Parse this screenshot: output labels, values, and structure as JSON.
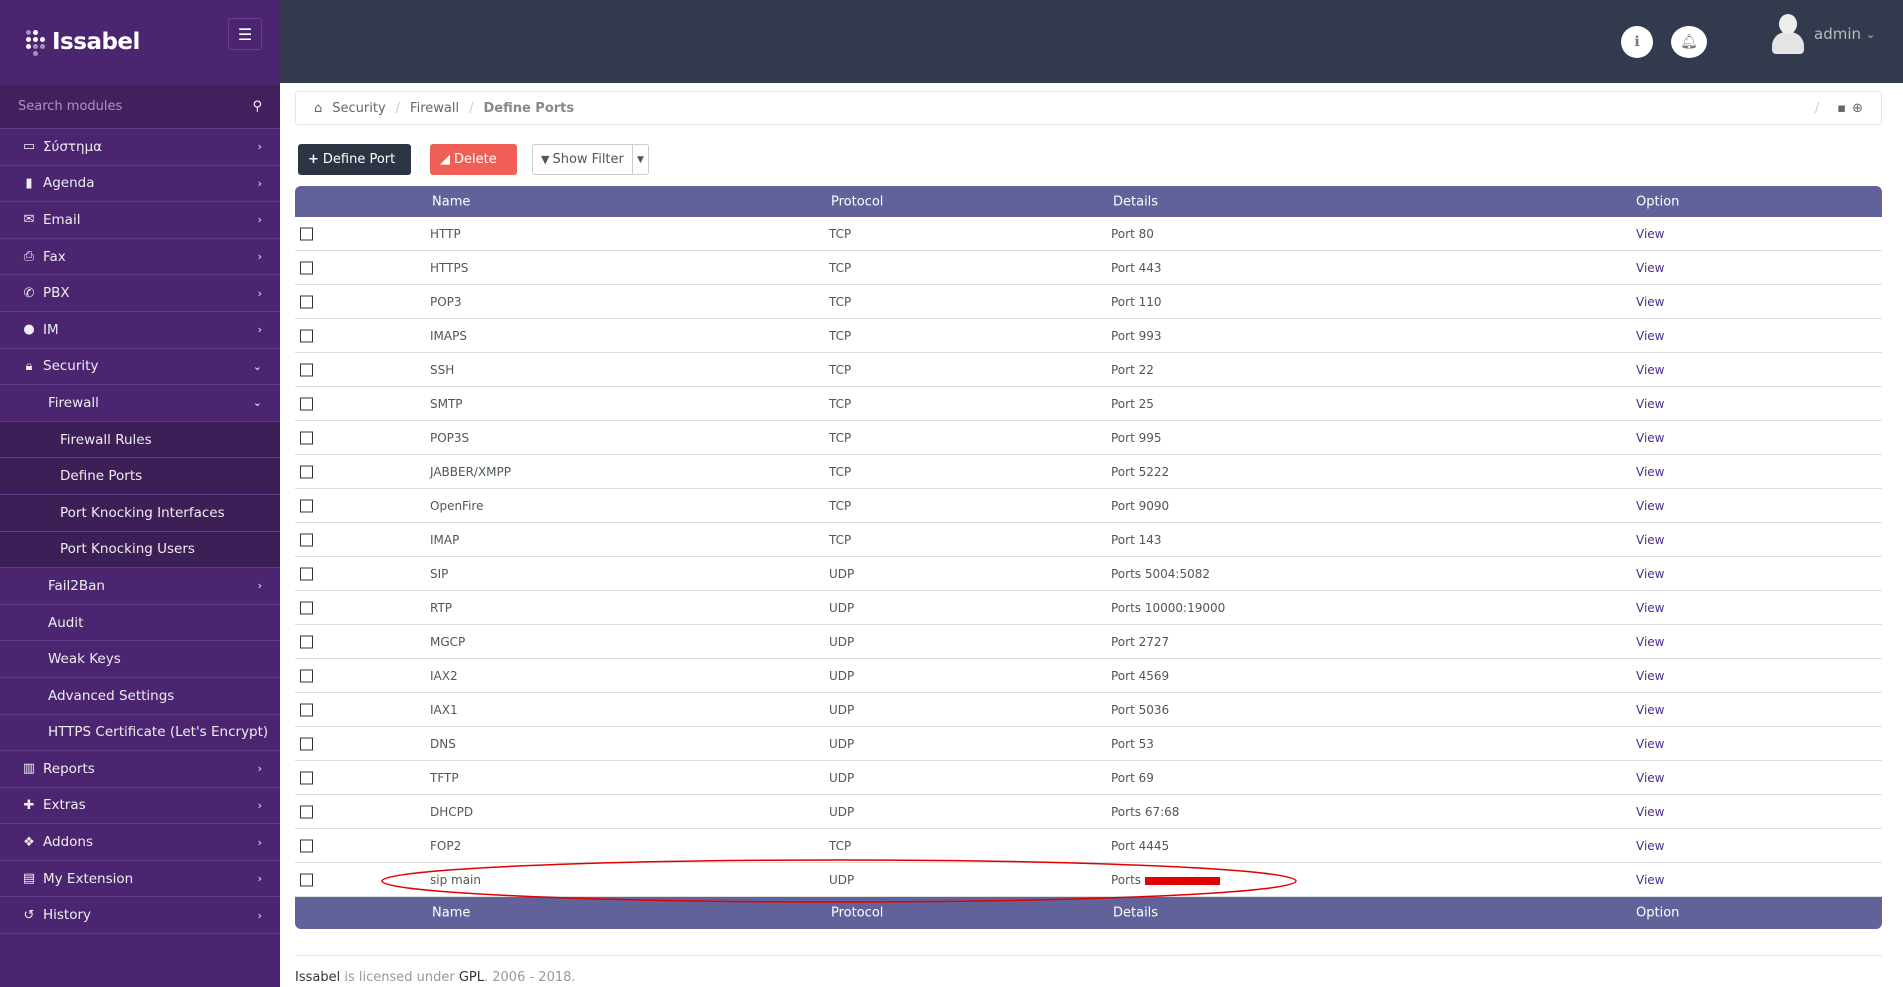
{
  "app": {
    "brand": "Issabel"
  },
  "sidebar": {
    "search_placeholder": "Search modules",
    "items": [
      {
        "label": "Σύστημα",
        "icon": "laptop-icon",
        "level": 1,
        "chev": "›"
      },
      {
        "label": "Agenda",
        "icon": "book-icon",
        "level": 1,
        "chev": "›"
      },
      {
        "label": "Email",
        "icon": "envelope-icon",
        "level": 1,
        "chev": "›"
      },
      {
        "label": "Fax",
        "icon": "printer-icon",
        "level": 1,
        "chev": "›"
      },
      {
        "label": "PBX",
        "icon": "phone-icon",
        "level": 1,
        "chev": "›"
      },
      {
        "label": "IM",
        "icon": "chat-icon",
        "level": 1,
        "chev": "›"
      },
      {
        "label": "Security",
        "icon": "lock-icon",
        "level": 1,
        "chev": "⌄"
      },
      {
        "label": "Firewall",
        "level": 2,
        "chev": "⌄"
      },
      {
        "label": "Firewall Rules",
        "level": 3
      },
      {
        "label": "Define Ports",
        "level": 3
      },
      {
        "label": "Port Knocking Interfaces",
        "level": 3
      },
      {
        "label": "Port Knocking Users",
        "level": 3
      },
      {
        "label": "Fail2Ban",
        "level": 2,
        "chev": "›"
      },
      {
        "label": "Audit",
        "level": 2
      },
      {
        "label": "Weak Keys",
        "level": 2
      },
      {
        "label": "Advanced Settings",
        "level": 2
      },
      {
        "label": "HTTPS Certificate (Let's Encrypt)",
        "level": 2
      },
      {
        "label": "Reports",
        "icon": "bar-chart-icon",
        "level": 1,
        "chev": "›"
      },
      {
        "label": "Extras",
        "icon": "plus-icon",
        "level": 1,
        "chev": "›"
      },
      {
        "label": "Addons",
        "icon": "cubes-icon",
        "level": 1,
        "chev": "›"
      },
      {
        "label": "My Extension",
        "icon": "extension-icon",
        "level": 1,
        "chev": "›"
      },
      {
        "label": "History",
        "icon": "history-icon",
        "level": 1,
        "chev": "›"
      }
    ]
  },
  "topbar": {
    "user": "admin"
  },
  "breadcrumb": [
    "Security",
    "Firewall",
    "Define Ports"
  ],
  "toolbar": {
    "define_port": "Define Port",
    "delete": "Delete",
    "show_filter": "Show Filter"
  },
  "table": {
    "columns": [
      "Name",
      "Protocol",
      "Details",
      "Option"
    ],
    "rows": [
      [
        "HTTP",
        "TCP",
        "Port 80",
        "View"
      ],
      [
        "HTTPS",
        "TCP",
        "Port 443",
        "View"
      ],
      [
        "POP3",
        "TCP",
        "Port 110",
        "View"
      ],
      [
        "IMAPS",
        "TCP",
        "Port 993",
        "View"
      ],
      [
        "SSH",
        "TCP",
        "Port 22",
        "View"
      ],
      [
        "SMTP",
        "TCP",
        "Port 25",
        "View"
      ],
      [
        "POP3S",
        "TCP",
        "Port 995",
        "View"
      ],
      [
        "JABBER/XMPP",
        "TCP",
        "Port 5222",
        "View"
      ],
      [
        "OpenFire",
        "TCP",
        "Port 9090",
        "View"
      ],
      [
        "IMAP",
        "TCP",
        "Port 143",
        "View"
      ],
      [
        "SIP",
        "UDP",
        "Ports 5004:5082",
        "View"
      ],
      [
        "RTP",
        "UDP",
        "Ports 10000:19000",
        "View"
      ],
      [
        "MGCP",
        "UDP",
        "Port 2727",
        "View"
      ],
      [
        "IAX2",
        "UDP",
        "Port 4569",
        "View"
      ],
      [
        "IAX1",
        "UDP",
        "Port 5036",
        "View"
      ],
      [
        "DNS",
        "UDP",
        "Port 53",
        "View"
      ],
      [
        "TFTP",
        "UDP",
        "Port 69",
        "View"
      ],
      [
        "DHCPD",
        "UDP",
        "Ports 67:68",
        "View"
      ],
      [
        "FOP2",
        "TCP",
        "Port 4445",
        "View"
      ],
      [
        "sip main",
        "UDP",
        "Ports",
        "View"
      ]
    ]
  },
  "footer": {
    "brand": "Issabel",
    "text1": " is licensed under ",
    "license": "GPL",
    "text2": ". 2006 - 2018."
  },
  "colors": {
    "sidebar": "#4b2570",
    "topbar": "#333a4d",
    "table_header": "#62629a",
    "delete": "#ef5f55",
    "annotation": "#e00000"
  }
}
